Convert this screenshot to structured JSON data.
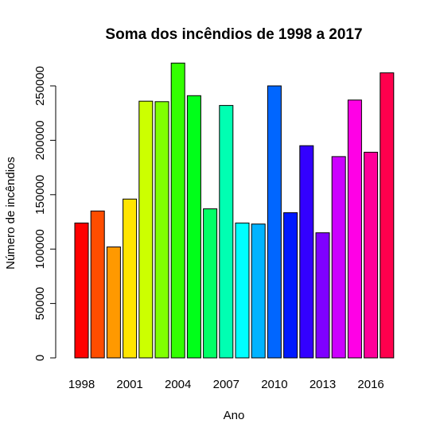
{
  "chart_data": {
    "type": "bar",
    "title": "Soma dos incêndios de 1998 a 2017",
    "xlabel": "Ano",
    "ylabel": "Número de incêndios",
    "categories": [
      "1998",
      "1999",
      "2000",
      "2001",
      "2002",
      "2003",
      "2004",
      "2005",
      "2006",
      "2007",
      "2008",
      "2009",
      "2010",
      "2011",
      "2012",
      "2013",
      "2014",
      "2015",
      "2016",
      "2017"
    ],
    "x_tick_labels": [
      "1998",
      "2001",
      "2004",
      "2007",
      "2010",
      "2013",
      "2016"
    ],
    "x_tick_indices": [
      0,
      3,
      6,
      9,
      12,
      15,
      18
    ],
    "y_ticks": [
      0,
      50000,
      100000,
      150000,
      200000,
      250000
    ],
    "ylim": [
      0,
      272000
    ],
    "values": [
      124000,
      135000,
      102000,
      146000,
      236000,
      235500,
      271000,
      241000,
      137000,
      232000,
      124000,
      123000,
      250000,
      133500,
      195000,
      115000,
      185000,
      237000,
      189000,
      262000
    ],
    "colors": [
      "#FF0000",
      "#FF4D00",
      "#FF9900",
      "#FFE500",
      "#CCFF00",
      "#80FF00",
      "#33FF00",
      "#00FF19",
      "#00FF66",
      "#00FFB2",
      "#00FFFF",
      "#00B3FF",
      "#0066FF",
      "#001AFF",
      "#3300FF",
      "#7F00FF",
      "#CC00FF",
      "#FF00E6",
      "#FF0099",
      "#FF004D"
    ],
    "grid": false,
    "legend": "none"
  }
}
